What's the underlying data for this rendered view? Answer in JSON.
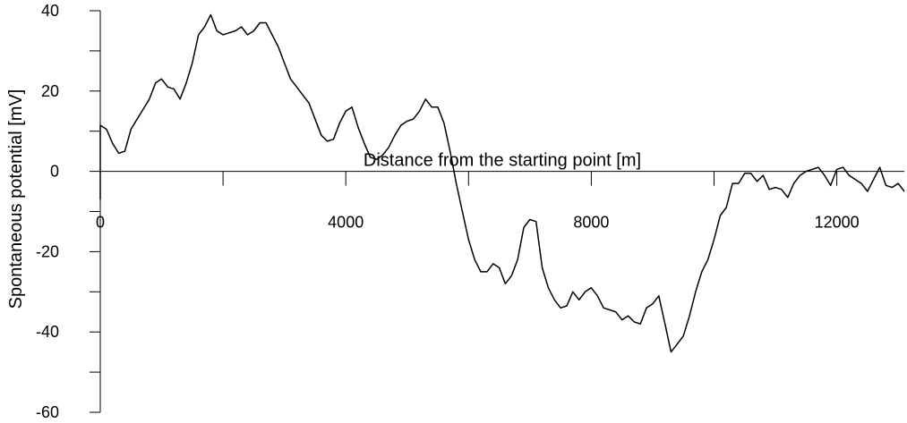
{
  "chart_data": {
    "type": "line",
    "xlabel": "Distance from the starting point [m]",
    "ylabel": "Spontaneous potential [mV]",
    "xlim": [
      0,
      13100
    ],
    "ylim": [
      -60,
      40
    ],
    "x_ticks": [
      0,
      4000,
      8000,
      12000
    ],
    "x_tick_labels": [
      "0",
      "4000",
      "8000",
      "12000"
    ],
    "y_ticks": [
      -60,
      -40,
      -20,
      0,
      20,
      40
    ],
    "y_tick_labels": [
      "-60",
      "-40",
      "-20",
      "0",
      "20",
      "40"
    ],
    "grid": false,
    "series": [
      {
        "name": "",
        "x": [
          0,
          100,
          200,
          300,
          400,
          500,
          600,
          700,
          800,
          900,
          1000,
          1100,
          1200,
          1300,
          1400,
          1500,
          1600,
          1700,
          1800,
          1900,
          2000,
          2100,
          2200,
          2300,
          2400,
          2500,
          2600,
          2700,
          2800,
          2900,
          3000,
          3100,
          3200,
          3300,
          3400,
          3500,
          3600,
          3700,
          3800,
          3900,
          4000,
          4100,
          4200,
          4300,
          4400,
          4500,
          4600,
          4700,
          4800,
          4900,
          5000,
          5100,
          5200,
          5300,
          5400,
          5500,
          5600,
          5700,
          5800,
          5900,
          6000,
          6100,
          6200,
          6300,
          6400,
          6500,
          6600,
          6700,
          6800,
          6900,
          7000,
          7100,
          7200,
          7300,
          7400,
          7500,
          7600,
          7700,
          7800,
          7900,
          8000,
          8100,
          8200,
          8300,
          8400,
          8500,
          8600,
          8700,
          8800,
          8900,
          9000,
          9100,
          9200,
          9300,
          9400,
          9500,
          9600,
          9700,
          9800,
          9900,
          10000,
          10100,
          10200,
          10300,
          10400,
          10500,
          10600,
          10700,
          10800,
          10900,
          11000,
          11100,
          11200,
          11300,
          11400,
          11500,
          11600,
          11700,
          11800,
          11900,
          12000,
          12100,
          12200,
          12300,
          12400,
          12500,
          12600,
          12700,
          12800,
          12900,
          13000,
          13100
        ],
        "y": [
          11.5,
          10.5,
          7,
          4.5,
          5,
          10.5,
          13,
          15.5,
          18,
          22,
          23,
          21,
          20.5,
          18,
          22,
          27,
          34,
          36,
          39,
          35,
          34,
          34.5,
          35,
          36,
          34,
          35,
          37,
          37,
          34,
          31,
          27,
          23,
          21,
          19,
          17,
          13,
          9,
          7.5,
          8,
          12,
          15,
          16,
          11,
          7,
          3.5,
          3,
          4,
          6,
          9,
          11.5,
          12.5,
          13,
          15,
          18,
          16,
          16,
          12,
          5,
          -3,
          -10,
          -17,
          -22,
          -25,
          -25,
          -23,
          -24,
          -28,
          -26,
          -22,
          -14,
          -12,
          -12.5,
          -24,
          -29,
          -32,
          -34,
          -33.5,
          -30,
          -32,
          -30,
          -29,
          -31,
          -34,
          -34.5,
          -35,
          -37,
          -36,
          -37.5,
          -38,
          -34,
          -33,
          -31,
          -38,
          -45,
          -43,
          -41,
          -36,
          -30,
          -25,
          -22,
          -17,
          -11,
          -9,
          -3,
          -3,
          -0.5,
          -0.5,
          -2.5,
          -1,
          -4.5,
          -4,
          -4.5,
          -6.5,
          -3,
          -1,
          0,
          0.5,
          1,
          -1,
          -3.5,
          0.5,
          1,
          -1,
          -2,
          -3,
          -5,
          -2,
          1,
          -3.5,
          -4,
          -3,
          -5
        ]
      }
    ]
  }
}
